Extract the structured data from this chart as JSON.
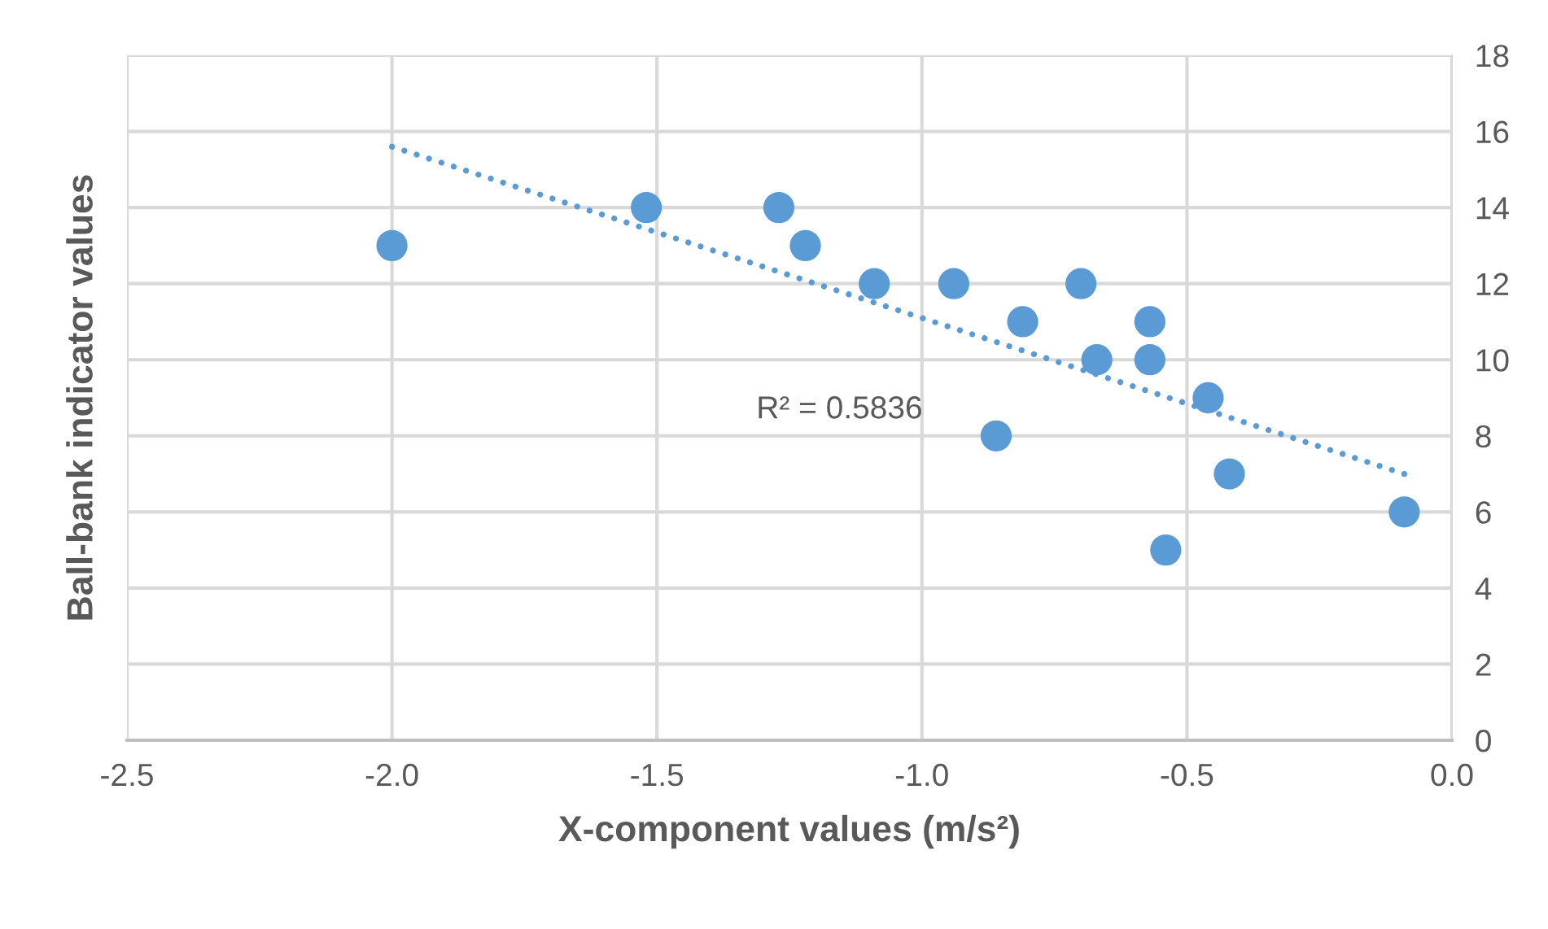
{
  "chart_data": {
    "type": "scatter",
    "xlabel": "X-component values (m/s²)",
    "ylabel": "Ball-bank indicator values",
    "series": [
      {
        "color": "#5b9bd5",
        "marker": "circle",
        "x": [
          -2.0,
          -1.52,
          -1.27,
          -1.22,
          -1.09,
          -0.94,
          -0.81,
          -0.7,
          -0.86,
          -0.67,
          -0.57,
          -0.57,
          -0.46,
          -0.42,
          -0.54,
          -0.09
        ],
        "values": [
          13,
          14,
          14,
          13,
          12,
          12,
          11,
          12,
          8,
          10,
          11,
          10,
          9,
          7,
          5,
          6
        ]
      },
      {
        "type": "line",
        "color": "#5b9bd5",
        "line_style": "dotted",
        "marker": "none",
        "x": [
          -2.0,
          -0.09
        ],
        "values": [
          15.6,
          7.0
        ]
      }
    ],
    "annotations": [
      "R² = 0.5836"
    ],
    "xlim": [
      -2.5,
      0.0
    ],
    "xticks": [
      {
        "value": -2.5,
        "label": "-2.5"
      },
      {
        "value": -2.0,
        "label": "-2.0"
      },
      {
        "value": -1.5,
        "label": "-1.5"
      },
      {
        "value": -1.0,
        "label": "-1.0"
      },
      {
        "value": -0.5,
        "label": "-0.5"
      },
      {
        "value": 0.0,
        "label": "0.0"
      }
    ],
    "ylim": [
      0,
      18
    ],
    "yticks": [
      0,
      2,
      4,
      6,
      8,
      10,
      12,
      14,
      16,
      18
    ],
    "grid": true,
    "legend": false
  }
}
